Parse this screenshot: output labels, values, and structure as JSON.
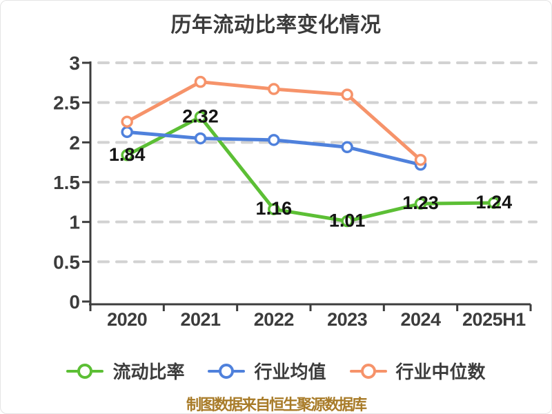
{
  "title": "历年流动比率变化情况",
  "footer": "制图数据来自恒生聚源数据库",
  "colors": {
    "background": "#ffffff",
    "title_text": "#3b3b3b",
    "axis": "#3d3d3d",
    "axis_label_text": "#3c3c3c",
    "gridline": "#d2d2d2",
    "value_label_text": "#141414",
    "footer_text": "#a87b28",
    "marker_fill": "#ffffff",
    "series_green": "#5cbf35",
    "series_blue": "#4f81dc",
    "series_orange": "#f6936a"
  },
  "chart_data": {
    "type": "line",
    "title": "历年流动比率变化情况",
    "categories": [
      "2020",
      "2021",
      "2022",
      "2023",
      "2024",
      "2025H1"
    ],
    "series": [
      {
        "name": "流动比率",
        "color": "#5cbf35",
        "values": [
          1.84,
          2.32,
          1.16,
          1.01,
          1.23,
          1.24
        ],
        "data_labels": [
          "1.84",
          "2.32",
          "1.16",
          "1.01",
          "1.23",
          "1.24"
        ]
      },
      {
        "name": "行业均值",
        "color": "#4f81dc",
        "values": [
          2.13,
          2.05,
          2.03,
          1.94,
          1.72,
          null
        ],
        "data_labels": null
      },
      {
        "name": "行业中位数",
        "color": "#f6936a",
        "values": [
          2.26,
          2.76,
          2.67,
          2.6,
          1.78,
          null
        ],
        "data_labels": null
      }
    ],
    "xlabel": "",
    "ylabel": "",
    "ylim": [
      0,
      3
    ],
    "y_ticks": [
      "0",
      "0.5",
      "1",
      "1.5",
      "2",
      "2.5",
      "3"
    ],
    "y_tick_values": [
      0,
      0.5,
      1,
      1.5,
      2,
      2.5,
      3
    ],
    "grid": "horizontal dashed gridlines at every 0.5",
    "legend_position": "bottom",
    "marker_style": "white-filled circles with colored ring"
  }
}
